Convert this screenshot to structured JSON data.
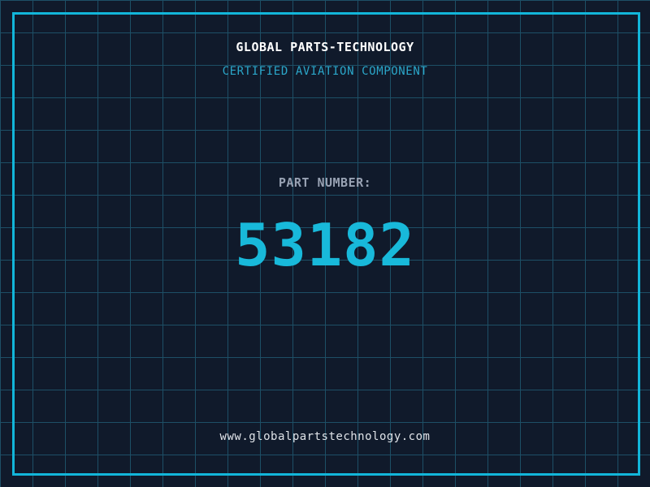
{
  "header": {
    "title": "GLOBAL PARTS-TECHNOLOGY",
    "subtitle": "CERTIFIED AVIATION COMPONENT"
  },
  "part": {
    "label": "PART NUMBER:",
    "value": "53182"
  },
  "footer": {
    "url": "www.globalpartstechnology.com"
  },
  "colors": {
    "background": "#101a2b",
    "grid_line": "#1d4f66",
    "frame_border": "#12b6da",
    "title_text": "#ffffff",
    "subtitle_text": "#2ba7ca",
    "label_text": "#98a2b3",
    "part_number_text": "#18b9da",
    "url_text": "#dfe3e8"
  }
}
